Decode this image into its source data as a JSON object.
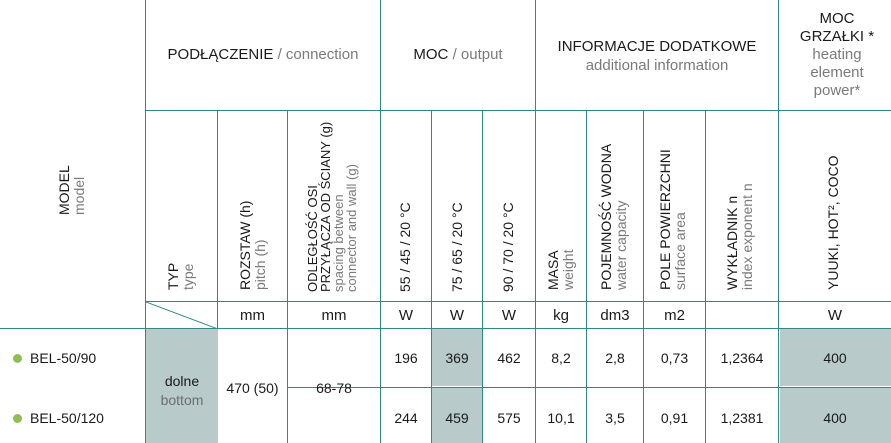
{
  "header": {
    "connection_pl": "PODŁĄCZENIE",
    "connection_en": "/ connection",
    "output_pl": "MOC",
    "output_en": "/ output",
    "info_pl": "INFORMACJE DODATKOWE",
    "info_en": "additional information",
    "heater_pl1": "MOC",
    "heater_pl2": "GRZAŁKI *",
    "heater_en": "heating element power*"
  },
  "columns": {
    "model_pl": "MODEL",
    "model_en": "model",
    "typ_pl": "TYP",
    "typ_en": "type",
    "pitch_pl": "ROZSTAW (h)",
    "pitch_en": "pitch (h)",
    "spacing_pl1": "ODLEGŁOŚĆ OSI",
    "spacing_pl2": "PRZYŁĄCZA OD ŚCIANY (g)",
    "spacing_en1": "spacing between",
    "spacing_en2": "connector and wall (g)",
    "out1": "55 / 45 / 20 °C",
    "out2": "75 / 65 / 20 °C",
    "out3": "90 / 70 / 20 °C",
    "mass_pl": "MASA",
    "mass_en": "weight",
    "water_pl": "POJEMNOŚĆ WODNA",
    "water_en": "water capacity",
    "surface_pl": "POLE POWIERZCHNI",
    "surface_en": "surface area",
    "index_pl": "WYKŁADNIK n",
    "index_en": "index exponent n",
    "heater_models": "YUUKI, HOT², COCO"
  },
  "units": {
    "pitch": "mm",
    "spacing": "mm",
    "out1": "W",
    "out2": "W",
    "out3": "W",
    "mass": "kg",
    "water": "dm3",
    "surface": "m2",
    "heater": "W"
  },
  "shared": {
    "type_pl": "dolne",
    "type_en": "bottom",
    "pitch": "470 (50)",
    "spacing": "68-78"
  },
  "rows": [
    {
      "model": "BEL-50/90",
      "out1": "196",
      "out2": "369",
      "out3": "462",
      "mass": "8,2",
      "water": "2,8",
      "surface": "0,73",
      "index": "1,2364",
      "heater": "400"
    },
    {
      "model": "BEL-50/120",
      "out1": "244",
      "out2": "459",
      "out3": "575",
      "mass": "10,1",
      "water": "3,5",
      "surface": "0,91",
      "index": "1,2381",
      "heater": "400"
    }
  ],
  "colors": {
    "grid": "#2f8a86",
    "shade": "#b8cac9",
    "bullet": "#8fbf54"
  }
}
